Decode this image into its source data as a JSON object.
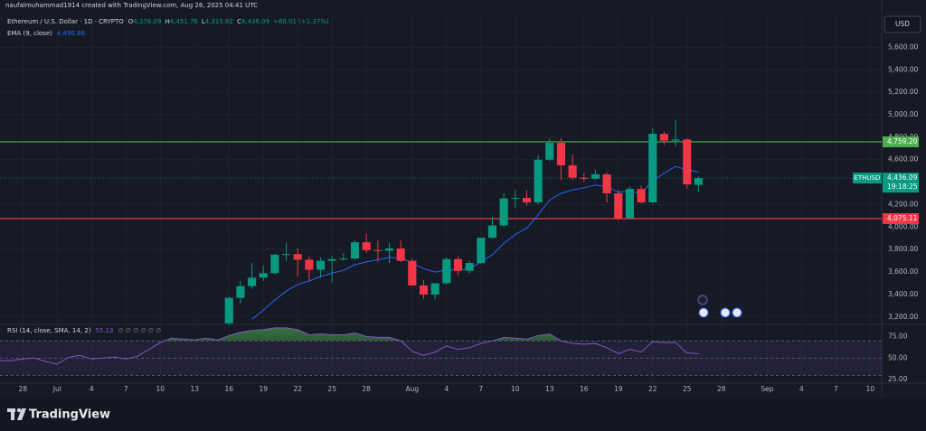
{
  "watermark": "naufalmuhammad1914 created with TradingView.com, Aug 26, 2025 04:41 UTC",
  "currency": "USD",
  "brand": "TradingView",
  "chart_data": [
    {
      "type": "candlestick",
      "title": "Ethereum / U.S. Dollar · 1D · CRYPTO",
      "quote": [
        {
          "label": "O",
          "value": "4,376.09"
        },
        {
          "label": "H",
          "value": "4,451.76"
        },
        {
          "label": "L",
          "value": "4,315.82"
        },
        {
          "label": "C",
          "value": "4,436.09"
        }
      ],
      "change": "+60.01 (+1.37%)",
      "up_color": "#089981",
      "down_color": "#f23645",
      "x": [
        "2025-07-16",
        "2025-07-17",
        "2025-07-18",
        "2025-07-19",
        "2025-07-20",
        "2025-07-21",
        "2025-07-22",
        "2025-07-23",
        "2025-07-24",
        "2025-07-25",
        "2025-07-26",
        "2025-07-27",
        "2025-07-28",
        "2025-07-29",
        "2025-07-30",
        "2025-07-31",
        "2025-08-01",
        "2025-08-02",
        "2025-08-03",
        "2025-08-04",
        "2025-08-05",
        "2025-08-06",
        "2025-08-07",
        "2025-08-08",
        "2025-08-09",
        "2025-08-10",
        "2025-08-11",
        "2025-08-12",
        "2025-08-13",
        "2025-08-14",
        "2025-08-15",
        "2025-08-16",
        "2025-08-17",
        "2025-08-18",
        "2025-08-19",
        "2025-08-20",
        "2025-08-21",
        "2025-08-22",
        "2025-08-23",
        "2025-08-24",
        "2025-08-25",
        "2025-08-26"
      ],
      "open": [
        3143,
        3370,
        3475,
        3550,
        3590,
        3755,
        3760,
        3710,
        3620,
        3700,
        3715,
        3720,
        3865,
        3795,
        3790,
        3810,
        3700,
        3480,
        3400,
        3500,
        3715,
        3610,
        3680,
        3905,
        4015,
        4255,
        4260,
        4220,
        4600,
        4750,
        4550,
        4440,
        4430,
        4470,
        4300,
        4080,
        4340,
        4220,
        4830,
        4770,
        4780,
        4376.09
      ],
      "high": [
        3380,
        3520,
        3680,
        3660,
        3760,
        3860,
        3810,
        3740,
        3730,
        3745,
        3770,
        3880,
        3940,
        3880,
        3860,
        3880,
        3720,
        3530,
        3500,
        3730,
        3740,
        3700,
        3900,
        4090,
        4300,
        4330,
        4330,
        4640,
        4790,
        4790,
        4650,
        4480,
        4510,
        4490,
        4330,
        4360,
        4370,
        4880,
        4850,
        4955,
        4790,
        4451.76
      ],
      "low": [
        3130,
        3320,
        3450,
        3520,
        3580,
        3700,
        3560,
        3520,
        3550,
        3510,
        3700,
        3710,
        3770,
        3690,
        3680,
        3690,
        3480,
        3360,
        3360,
        3490,
        3570,
        3590,
        3670,
        3900,
        4000,
        4170,
        4190,
        4200,
        4590,
        4420,
        4420,
        4400,
        4420,
        4220,
        4060,
        4070,
        4210,
        4210,
        4730,
        4720,
        4340,
        4315.82
      ],
      "close": [
        3370,
        3475,
        3550,
        3590,
        3755,
        3760,
        3710,
        3620,
        3700,
        3715,
        3720,
        3865,
        3795,
        3790,
        3810,
        3700,
        3480,
        3400,
        3500,
        3715,
        3610,
        3680,
        3905,
        4015,
        4255,
        4260,
        4220,
        4600,
        4750,
        4550,
        4440,
        4430,
        4470,
        4300,
        4080,
        4340,
        4220,
        4830,
        4770,
        4780,
        4380,
        4436.09
      ],
      "overlay": {
        "name": "EMA (9, close)",
        "value_label": "4,490.86",
        "color": "#2962ff",
        "values": [
          null,
          null,
          3180,
          3260,
          3350,
          3430,
          3490,
          3520,
          3560,
          3590,
          3615,
          3665,
          3690,
          3710,
          3730,
          3725,
          3680,
          3630,
          3600,
          3620,
          3620,
          3630,
          3690,
          3755,
          3855,
          3935,
          3990,
          4110,
          4240,
          4300,
          4330,
          4350,
          4375,
          4360,
          4310,
          4320,
          4300,
          4410,
          4480,
          4540,
          4510,
          4490.86
        ]
      },
      "lines": [
        {
          "value": 4759.2,
          "label": "4,759.20",
          "color": "#4caf50"
        },
        {
          "value": 4075.11,
          "label": "4,075.11",
          "color": "#f23645"
        }
      ],
      "last_price": {
        "name": "ETHUSD",
        "label": "4,436.09",
        "countdown": "19:18:25"
      },
      "xlim": [
        "2025-06-26",
        "2025-09-11"
      ],
      "xticks": [
        {
          "value": "2025-06-28",
          "label": "28"
        },
        {
          "value": "2025-07-01",
          "label": "Jul"
        },
        {
          "value": "2025-07-04",
          "label": "4"
        },
        {
          "value": "2025-07-07",
          "label": "7"
        },
        {
          "value": "2025-07-10",
          "label": "10"
        },
        {
          "value": "2025-07-13",
          "label": "13"
        },
        {
          "value": "2025-07-16",
          "label": "16"
        },
        {
          "value": "2025-07-19",
          "label": "19"
        },
        {
          "value": "2025-07-22",
          "label": "22"
        },
        {
          "value": "2025-07-25",
          "label": "25"
        },
        {
          "value": "2025-07-28",
          "label": "28"
        },
        {
          "value": "2025-08-01",
          "label": "Aug"
        },
        {
          "value": "2025-08-04",
          "label": "4"
        },
        {
          "value": "2025-08-07",
          "label": "7"
        },
        {
          "value": "2025-08-10",
          "label": "10"
        },
        {
          "value": "2025-08-13",
          "label": "13"
        },
        {
          "value": "2025-08-16",
          "label": "16"
        },
        {
          "value": "2025-08-19",
          "label": "19"
        },
        {
          "value": "2025-08-22",
          "label": "22"
        },
        {
          "value": "2025-08-25",
          "label": "25"
        },
        {
          "value": "2025-08-28",
          "label": "28"
        },
        {
          "value": "2025-09-01",
          "label": "Sep"
        },
        {
          "value": "2025-09-04",
          "label": "4"
        },
        {
          "value": "2025-09-07",
          "label": "7"
        },
        {
          "value": "2025-09-10",
          "label": "10"
        }
      ],
      "ylim": [
        3142,
        5901
      ],
      "yticks": [
        {
          "value": 3200,
          "label": "3,200.00"
        },
        {
          "value": 3400,
          "label": "3,400.00"
        },
        {
          "value": 3600,
          "label": "3,600.00"
        },
        {
          "value": 3800,
          "label": "3,800.00"
        },
        {
          "value": 4000,
          "label": "4,000.00"
        },
        {
          "value": 4200,
          "label": "4,200.00"
        },
        {
          "value": 4600,
          "label": "4,600.00"
        },
        {
          "value": 4800,
          "label": "4,800.00"
        },
        {
          "value": 5000,
          "label": "5,000.00"
        },
        {
          "value": 5200,
          "label": "5,200.00"
        },
        {
          "value": 5400,
          "label": "5,400.00"
        },
        {
          "value": 5600,
          "label": "5,600.00"
        }
      ],
      "grid": true
    },
    {
      "type": "line",
      "title": "RSI (14, close, SMA, 14, 2)",
      "value_label": "55.13",
      "na": "∅ ∅ ∅ ∅ ∅ ∅",
      "color": "#7e57c2",
      "x": [
        "2025-06-26",
        "2025-06-27",
        "2025-06-28",
        "2025-06-29",
        "2025-06-30",
        "2025-07-01",
        "2025-07-02",
        "2025-07-03",
        "2025-07-04",
        "2025-07-05",
        "2025-07-06",
        "2025-07-07",
        "2025-07-08",
        "2025-07-09",
        "2025-07-10",
        "2025-07-11",
        "2025-07-12",
        "2025-07-13",
        "2025-07-14",
        "2025-07-15",
        "2025-07-16",
        "2025-07-17",
        "2025-07-18",
        "2025-07-19",
        "2025-07-20",
        "2025-07-21",
        "2025-07-22",
        "2025-07-23",
        "2025-07-24",
        "2025-07-25",
        "2025-07-26",
        "2025-07-27",
        "2025-07-28",
        "2025-07-29",
        "2025-07-30",
        "2025-07-31",
        "2025-08-01",
        "2025-08-02",
        "2025-08-03",
        "2025-08-04",
        "2025-08-05",
        "2025-08-06",
        "2025-08-07",
        "2025-08-08",
        "2025-08-09",
        "2025-08-10",
        "2025-08-11",
        "2025-08-12",
        "2025-08-13",
        "2025-08-14",
        "2025-08-15",
        "2025-08-16",
        "2025-08-17",
        "2025-08-18",
        "2025-08-19",
        "2025-08-20",
        "2025-08-21",
        "2025-08-22",
        "2025-08-23",
        "2025-08-24",
        "2025-08-25",
        "2025-08-26"
      ],
      "values": [
        47,
        47,
        49,
        50,
        46,
        43,
        51,
        53,
        49,
        50,
        51,
        49,
        52,
        60,
        68,
        73,
        72,
        71,
        73,
        71,
        76,
        80,
        82,
        83,
        85,
        85,
        83,
        77,
        78,
        77,
        77,
        79,
        75,
        74,
        74,
        70,
        58,
        53,
        57,
        64,
        60,
        62,
        67,
        70,
        74,
        73,
        72,
        76,
        78,
        70,
        67,
        66,
        67,
        62,
        55,
        60,
        57,
        69,
        68,
        68,
        56,
        55.13
      ],
      "levels": [
        70,
        50,
        30
      ],
      "band_color": "#7e57c2",
      "fill_color": "#4caf50",
      "ylim": [
        21,
        88
      ],
      "yticks": [
        {
          "value": 75,
          "label": "75.00"
        },
        {
          "value": 50,
          "label": "50.00"
        },
        {
          "value": 25,
          "label": "25.00"
        }
      ]
    }
  ]
}
